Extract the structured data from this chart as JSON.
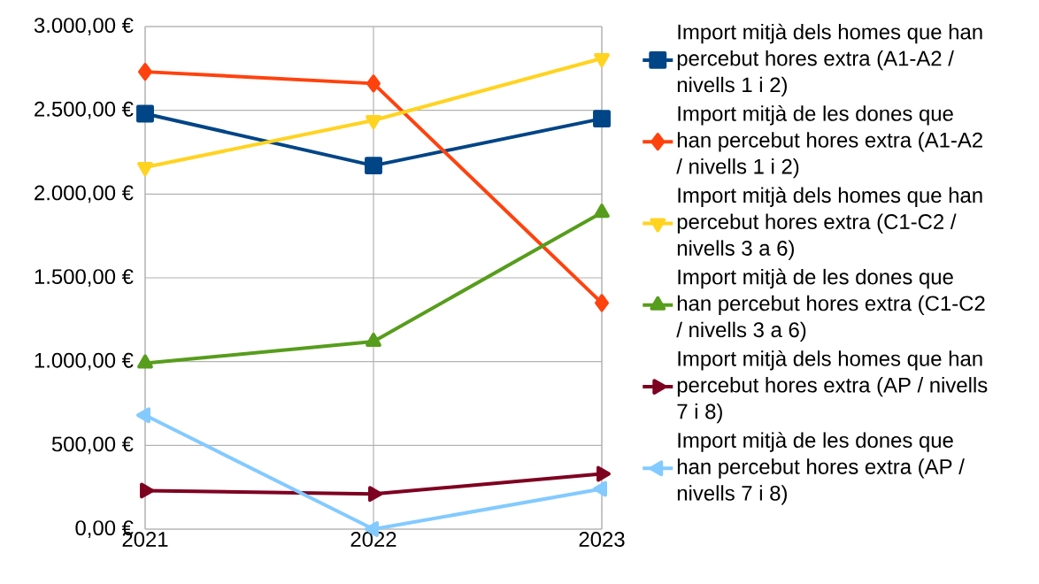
{
  "chart_data": {
    "type": "line",
    "categories": [
      "2021",
      "2022",
      "2023"
    ],
    "series": [
      {
        "name": "Import mitjà dels homes  que han percebut hores extra (A1-A2 / nivells 1 i 2)",
        "color": "#004586",
        "marker": "square",
        "values": [
          2480,
          2170,
          2450
        ]
      },
      {
        "name": "Import mitjà de les dones que han percebut hores extra (A1-A2 / nivells 1 i 2)",
        "color": "#ff420e",
        "marker": "diamond",
        "values": [
          2730,
          2660,
          1350
        ]
      },
      {
        "name": "Import mitjà dels homes  que han percebut hores extra (C1-C2 / nivells 3 a 6)",
        "color": "#ffd320",
        "marker": "triangle",
        "values": [
          2160,
          2440,
          2810
        ]
      },
      {
        "name": "Import mitjà de les dones que han percebut hores extra (C1-C2 / nivells 3 a 6)",
        "color": "#579d1c",
        "marker": "triangle",
        "values": [
          990,
          1120,
          1890
        ]
      },
      {
        "name": "Import mitjà dels homes  que han percebut hores extra (AP / nivells 7 i 8)",
        "color": "#7e0021",
        "marker": "triangle",
        "values": [
          230,
          210,
          330
        ]
      },
      {
        "name": "Import mitjà de les dones que han percebut hores extra (AP / nivells 7 i 8)",
        "color": "#83caff",
        "marker": "triangle",
        "values": [
          680,
          0,
          240
        ]
      }
    ],
    "ylim": [
      0,
      3000
    ],
    "yticks": [
      {
        "value": 0,
        "label": "0,00 €"
      },
      {
        "value": 500,
        "label": "500,00 €"
      },
      {
        "value": 1000,
        "label": "1.000,00 €"
      },
      {
        "value": 1500,
        "label": "1.500,00 €"
      },
      {
        "value": 2000,
        "label": "2.000,00 €"
      },
      {
        "value": 2500,
        "label": "2.500,00 €"
      },
      {
        "value": 3000,
        "label": "3.000,00 €"
      }
    ],
    "grid": true,
    "legend": "right",
    "line_style": "solid"
  }
}
